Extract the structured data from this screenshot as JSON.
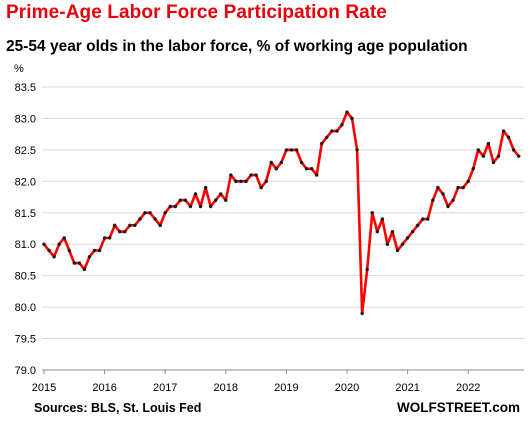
{
  "chart_data": {
    "type": "line",
    "title": "Prime-Age Labor Force Participation  Rate",
    "subtitle": "25-54 year olds in the labor force, % of working age population",
    "ylabel": "%",
    "xlabel": "",
    "ylim": [
      79.0,
      83.5
    ],
    "yticks": [
      "83.5",
      "83.0",
      "82.5",
      "82.0",
      "81.5",
      "81.0",
      "80.5",
      "80.0",
      "79.5",
      "79.0"
    ],
    "xticks": [
      "2015",
      "2016",
      "2017",
      "2018",
      "2019",
      "2020",
      "2021",
      "2022"
    ],
    "grid": "horizontal",
    "colors": {
      "line": "#ff0000",
      "marker": "#1a1a1a",
      "grid": "#d9d9d9",
      "title": "#e8000b"
    },
    "series": [
      {
        "start": "2015-01",
        "frequency": "monthly",
        "values": [
          81.0,
          80.9,
          80.8,
          81.0,
          81.1,
          80.9,
          80.7,
          80.7,
          80.6,
          80.8,
          80.9,
          80.9,
          81.1,
          81.1,
          81.3,
          81.2,
          81.2,
          81.3,
          81.3,
          81.4,
          81.5,
          81.5,
          81.4,
          81.3,
          81.5,
          81.6,
          81.6,
          81.7,
          81.7,
          81.6,
          81.8,
          81.6,
          81.9,
          81.6,
          81.7,
          81.8,
          81.7,
          82.1,
          82.0,
          82.0,
          82.0,
          82.1,
          82.1,
          81.9,
          82.0,
          82.3,
          82.2,
          82.3,
          82.5,
          82.5,
          82.5,
          82.3,
          82.2,
          82.2,
          82.1,
          82.6,
          82.7,
          82.8,
          82.8,
          82.9,
          83.1,
          83.0,
          82.5,
          79.9,
          80.6,
          81.5,
          81.2,
          81.4,
          81.0,
          81.2,
          80.9,
          81.0,
          81.1,
          81.2,
          81.3,
          81.4,
          81.4,
          81.7,
          81.9,
          81.8,
          81.6,
          81.7,
          81.9,
          81.9,
          82.0,
          82.2,
          82.5,
          82.4,
          82.6,
          82.3,
          82.4,
          82.8,
          82.7,
          82.5,
          82.4
        ]
      }
    ]
  },
  "footer": {
    "source": "Sources: BLS, St. Louis Fed",
    "brand": "WOLFSTREET.com"
  }
}
